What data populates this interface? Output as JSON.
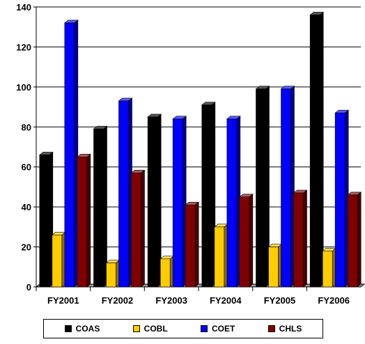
{
  "chart_data": {
    "type": "bar",
    "categories": [
      "FY2001",
      "FY2002",
      "FY2003",
      "FY2004",
      "FY2005",
      "FY2006"
    ],
    "series": [
      {
        "name": "COAS",
        "color": "#000000",
        "values": [
          66,
          79,
          85,
          91,
          99,
          136
        ]
      },
      {
        "name": "COBL",
        "color": "#FFCC00",
        "values": [
          26,
          12,
          14,
          30,
          20,
          18
        ]
      },
      {
        "name": "COET",
        "color": "#0000FF",
        "values": [
          132,
          93,
          84,
          84,
          99,
          87
        ]
      },
      {
        "name": "CHLS",
        "color": "#800000",
        "values": [
          65,
          57,
          41,
          45,
          47,
          46
        ]
      }
    ],
    "yticks": [
      "0",
      "20",
      "40",
      "60",
      "80",
      "100",
      "120",
      "140"
    ],
    "ylim": [
      0,
      140
    ],
    "grid": true,
    "legend_position": "bottom",
    "title": "",
    "xlabel": "",
    "ylabel": ""
  }
}
